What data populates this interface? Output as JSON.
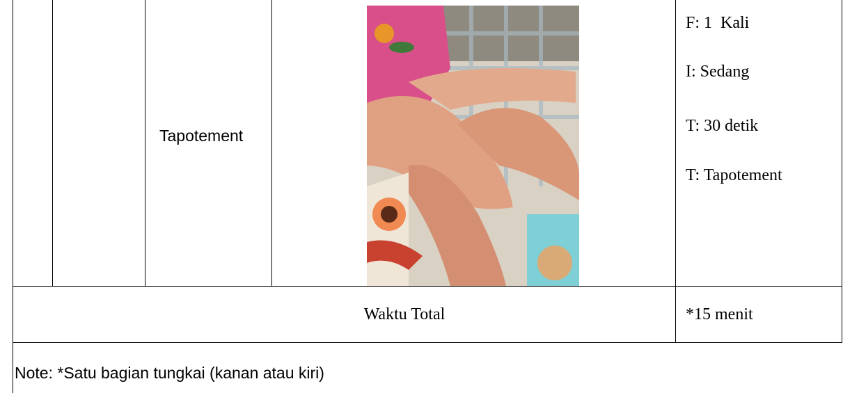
{
  "row": {
    "technique": "Tapotement",
    "dosage": [
      "F: 1  Kali",
      "I: Sedang",
      "T: 30 detik",
      "T: Tapotement"
    ]
  },
  "total": {
    "label": "Waktu Total",
    "value": "*15 menit"
  },
  "note": "Note: *Satu bagian tungkai (kanan atau kiri)"
}
